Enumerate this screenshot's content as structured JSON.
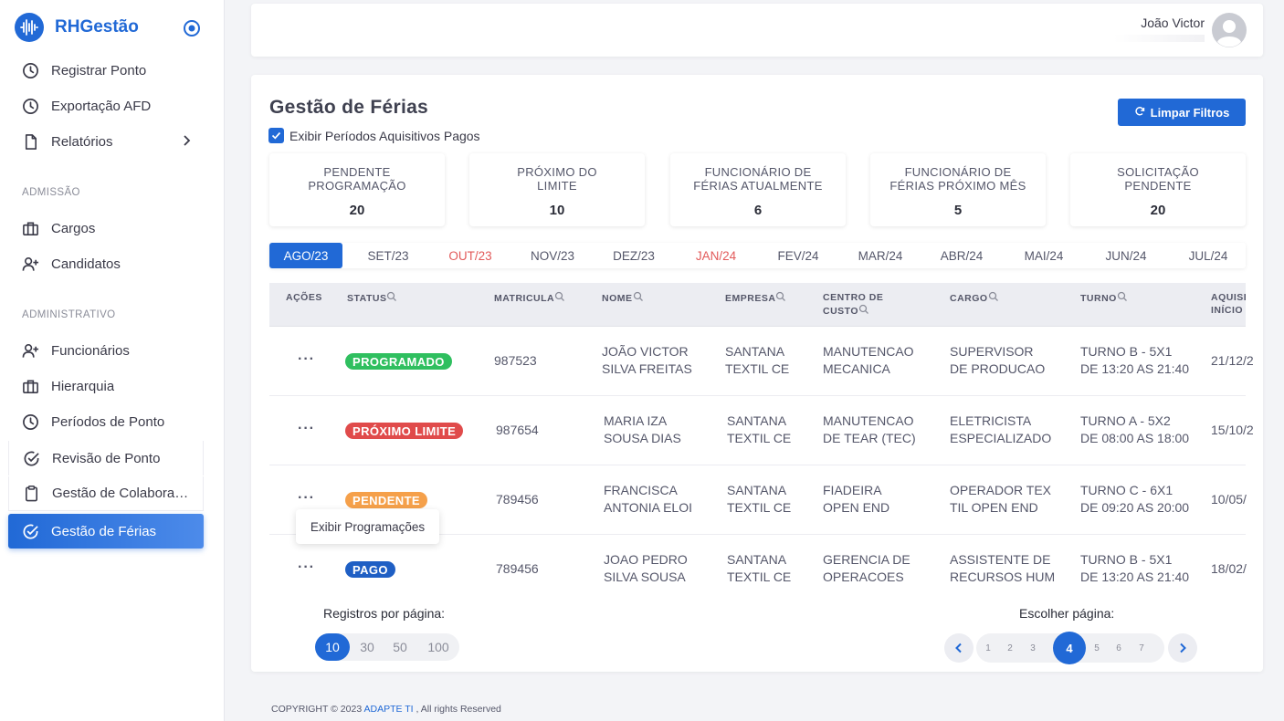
{
  "sidebar": {
    "brand": "RHGestão",
    "items_top": [
      {
        "label": "Registrar Ponto",
        "icon": "clock-icon"
      },
      {
        "label": "Exportação AFD",
        "icon": "clock-icon"
      },
      {
        "label": "Relatórios",
        "icon": "file-icon"
      }
    ],
    "section_admissao": "ADMISSÃO",
    "items_admissao": [
      {
        "label": "Cargos",
        "icon": "briefcase-icon"
      },
      {
        "label": "Candidatos",
        "icon": "user-plus-icon"
      }
    ],
    "section_administrativo": "ADMINISTRATIVO",
    "items_administrativo": [
      {
        "label": "Funcionários",
        "icon": "user-plus-icon"
      },
      {
        "label": "Hierarquia",
        "icon": "briefcase-icon"
      },
      {
        "label": "Períodos de Ponto",
        "icon": "clock-icon"
      },
      {
        "label": "Revisão de Ponto",
        "icon": "check-circle-icon"
      },
      {
        "label": "Gestão de Colaboradores",
        "icon": "clipboard-icon"
      },
      {
        "label": "Gestão de Férias",
        "icon": "check-circle-icon"
      }
    ]
  },
  "header": {
    "user_name": "João Victor"
  },
  "main": {
    "title": "Gestão de Férias",
    "clear_filters": "Limpar Filtros",
    "show_paid_label": "Exibir Períodos Aquisitivos Pagos",
    "show_paid_checked": true,
    "stats": [
      {
        "line1": "PENDENTE",
        "line2": "PROGRAMAÇÃO",
        "value": "20"
      },
      {
        "line1": "PRÓXIMO DO",
        "line2": "LIMITE",
        "value": "10"
      },
      {
        "line1": "FUNCIONÁRIO DE",
        "line2": "FÉRIAS ATUALMENTE",
        "value": "6"
      },
      {
        "line1": "FUNCIONÁRIO DE",
        "line2": "FÉRIAS PRÓXIMO MÊS",
        "value": "5"
      },
      {
        "line1": "SOLICITAÇÃO",
        "line2": "PENDENTE",
        "value": "20"
      }
    ],
    "months": [
      "AGO/23",
      "SET/23",
      "OUT/23",
      "NOV/23",
      "DEZ/23",
      "JAN/24",
      "FEV/24",
      "MAR/24",
      "ABR/24",
      "MAI/24",
      "JUN/24",
      "JUL/24"
    ],
    "active_month": "AGO/23",
    "highlighted_months": [
      "OUT/23",
      "JAN/24"
    ],
    "columns": {
      "acoes": "AÇÕES",
      "status": "STATUS",
      "matricula": "MATRICULA",
      "nome": "NOME",
      "empresa": "EMPRESA",
      "centro_1": "CENTRO DE",
      "centro_2": "CUSTO",
      "cargo": "CARGO",
      "turno": "TURNO",
      "aquis_1": "AQUISI",
      "aquis_2": "INÍCIO"
    },
    "rows": [
      {
        "status": "PROGRAMADO",
        "status_color": "#2fbf5f",
        "matricula": "987523",
        "nome_1": "JOÃO VICTOR",
        "nome_2": "SILVA FREITAS",
        "empresa_1": "SANTANA",
        "empresa_2": "TEXTIL CE",
        "centro_1": "MANUTENCAO",
        "centro_2": "MECANICA",
        "cargo_1": "SUPERVISOR",
        "cargo_2": "DE PRODUCAO",
        "turno_1": "TURNO B - 5X1",
        "turno_2": "DE 13:20 AS 21:40",
        "inicio": "21/12/2"
      },
      {
        "status": "PRÓXIMO LIMITE",
        "status_color": "#e04b4b",
        "matricula": "987654",
        "nome_1": "MARIA IZA",
        "nome_2": "SOUSA DIAS",
        "empresa_1": "SANTANA",
        "empresa_2": "TEXTIL CE",
        "centro_1": "MANUTENCAO",
        "centro_2": "DE TEAR (TEC)",
        "cargo_1": "ELETRICISTA",
        "cargo_2": "ESPECIALIZADO",
        "turno_1": "TURNO A - 5X2",
        "turno_2": "DE 08:00 AS 18:00",
        "inicio": "15/10/2"
      },
      {
        "status": "PENDENTE",
        "status_color": "#f5a04a",
        "matricula": "789456",
        "nome_1": "FRANCISCA",
        "nome_2": "ANTONIA ELOI",
        "empresa_1": "SANTANA",
        "empresa_2": "TEXTIL CE",
        "centro_1": "FIADEIRA",
        "centro_2": "OPEN END",
        "cargo_1": "OPERADOR TEX",
        "cargo_2": "TIL OPEN END",
        "turno_1": "TURNO C - 6X1",
        "turno_2": "DE 09:20 AS 20:00",
        "inicio": "10/05/"
      },
      {
        "status": "PAGO",
        "status_color": "#1f5fc4",
        "matricula": "789456",
        "nome_1": "JOAO PEDRO",
        "nome_2": "SILVA SOUSA",
        "empresa_1": "SANTANA",
        "empresa_2": "TEXTIL CE",
        "centro_1": "GERENCIA DE",
        "centro_2": "OPERACOES",
        "cargo_1": "ASSISTENTE DE",
        "cargo_2": "RECURSOS HUM",
        "turno_1": "TURNO B - 5X1",
        "turno_2": "DE 13:20 AS 21:40",
        "inicio": "18/02/"
      }
    ],
    "tooltip": "Exibir Programações",
    "per_page_label": "Registros por página:",
    "per_page_options": [
      "10",
      "30",
      "50",
      "100"
    ],
    "per_page_selected": "10",
    "choose_page_label": "Escolher página:",
    "pages": [
      "1",
      "2",
      "3",
      "4",
      "5",
      "6",
      "7"
    ],
    "current_page": "4",
    "row_action": "···"
  },
  "footer": {
    "prefix": "COPYRIGHT © 2023",
    "link": "ADAPTE TI",
    "suffix": ", All rights Reserved"
  },
  "colors": {
    "accent": "#2169d6",
    "danger": "#e04b4b",
    "success": "#2fbf5f",
    "warning": "#f5a04a"
  }
}
